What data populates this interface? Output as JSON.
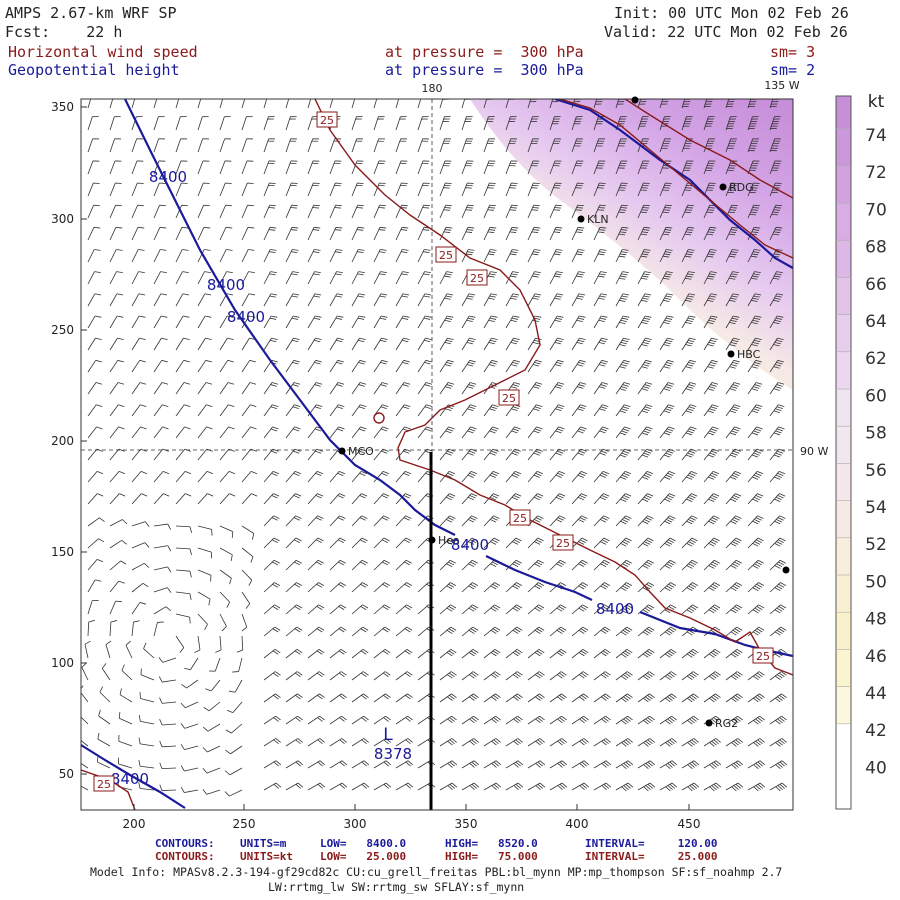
{
  "header": {
    "model": "AMPS 2.67-km WRF SP",
    "init": "Init: 00 UTC Mon 02 Feb 26",
    "fcst": "Fcst:    22 h",
    "valid": "Valid: 22 UTC Mon 02 Feb 26",
    "field1_name": "Horizontal wind speed",
    "field1_level": "at pressure =  300 hPa",
    "field1_sm": "sm= 3",
    "field2_name": "Geopotential height",
    "field2_level": "at pressure =  300 hPa",
    "field2_sm": "sm= 2"
  },
  "colors": {
    "wind_contour": "#8b1a1a",
    "height_contour": "#1a1a9a",
    "text": "#222222"
  },
  "map": {
    "x_ticks": [
      "200",
      "250",
      "300",
      "350",
      "400",
      "450"
    ],
    "y_ticks": [
      "350",
      "300",
      "250",
      "200",
      "150",
      "100",
      "50"
    ],
    "meridian_labels": [
      {
        "id": "lon-180",
        "text": "180"
      },
      {
        "id": "lon-135w",
        "text": "135 W"
      },
      {
        "id": "lon-90w",
        "text": "90 W"
      }
    ],
    "stations": [
      {
        "id": "stn-rdg",
        "name": "RDG"
      },
      {
        "id": "stn-kln",
        "name": "KLN"
      },
      {
        "id": "stn-hbc",
        "name": "HBC"
      },
      {
        "id": "stn-mcm",
        "name": "MCO"
      },
      {
        "id": "stn-hea",
        "name": "Hea"
      },
      {
        "id": "stn-rg2",
        "name": "RG2"
      },
      {
        "id": "stn-top",
        "name": ""
      },
      {
        "id": "stn-right",
        "name": ""
      }
    ],
    "height_labels": [
      "8400",
      "8400",
      "8400",
      "8400",
      "8400",
      "8400"
    ],
    "wind_labels": [
      "25",
      "25",
      "25",
      "25",
      "25",
      "25",
      "25",
      "25"
    ],
    "low_center": {
      "symbol": "L",
      "value": "8378"
    }
  },
  "colorbar": {
    "units": "kt",
    "labels": [
      "74",
      "72",
      "70",
      "68",
      "66",
      "64",
      "62",
      "60",
      "58",
      "56",
      "54",
      "52",
      "50",
      "48",
      "46",
      "44",
      "42",
      "40"
    ],
    "colors": [
      "#c78fd8",
      "#cc98dc",
      "#d2a2e0",
      "#d8ade4",
      "#ddb8e7",
      "#e2c3ea",
      "#e7ceed",
      "#ebd8ef",
      "#efe2f1",
      "#f2e7ef",
      "#f4e8ea",
      "#f6ebe4",
      "#f8eedc",
      "#f9f0d4",
      "#faf2cc",
      "#fbf4d0",
      "#fcf7dd",
      "#ffffff"
    ]
  },
  "footer": {
    "row1_title": "CONTOURS:",
    "row1_units": "UNITS=m",
    "row1_low": "LOW=   8400.0",
    "row1_high": "HIGH=   8520.0",
    "row1_interval": "INTERVAL=     120.00",
    "row2_title": "CONTOURS:",
    "row2_units": "UNITS=kt",
    "row2_low": "LOW=   25.000",
    "row2_high": "HIGH=   75.000",
    "row2_interval": "INTERVAL=     25.000",
    "model_info": "Model Info: MPASv8.2.3-194-gf29cd82c CU:cu_grell_freitas PBL:bl_mynn MP:mp_thompson SF:sf_noahmp 2.7",
    "model_info2": "LW:rrtmg_lw SW:rrtmg_sw SFLAY:sf_mynn"
  }
}
